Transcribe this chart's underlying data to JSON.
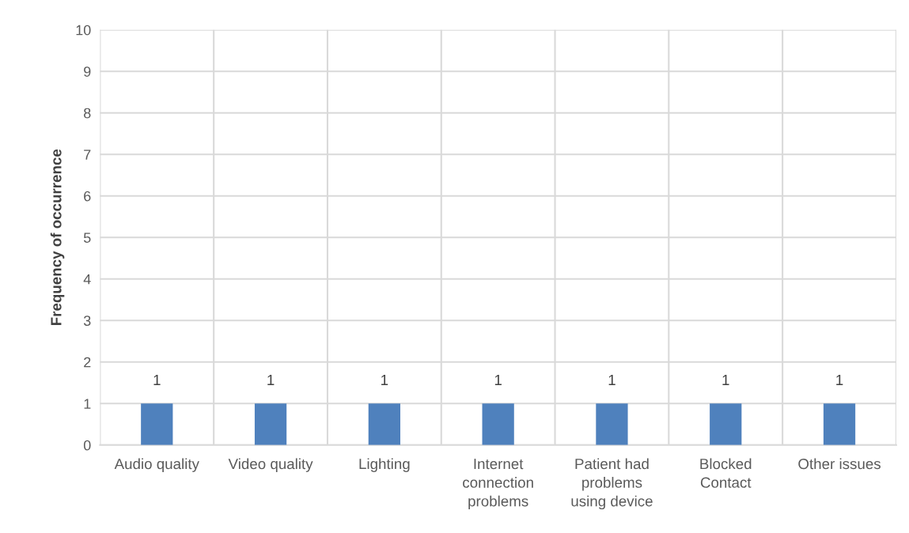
{
  "chart_data": {
    "type": "bar",
    "ylabel": "Frequency of occurrence",
    "categories": [
      "Audio quality",
      "Video quality",
      "Lighting",
      "Internet\nconnection\nproblems",
      "Patient had\nproblems\nusing device",
      "Blocked\nContact",
      "Other issues"
    ],
    "values": [
      1,
      1,
      1,
      1,
      1,
      1,
      1
    ],
    "color": "#4f81bd",
    "ylim": [
      0,
      10
    ],
    "yticks": [
      0,
      1,
      2,
      3,
      4,
      5,
      6,
      7,
      8,
      9,
      10
    ],
    "grid": true,
    "data_labels": true
  }
}
